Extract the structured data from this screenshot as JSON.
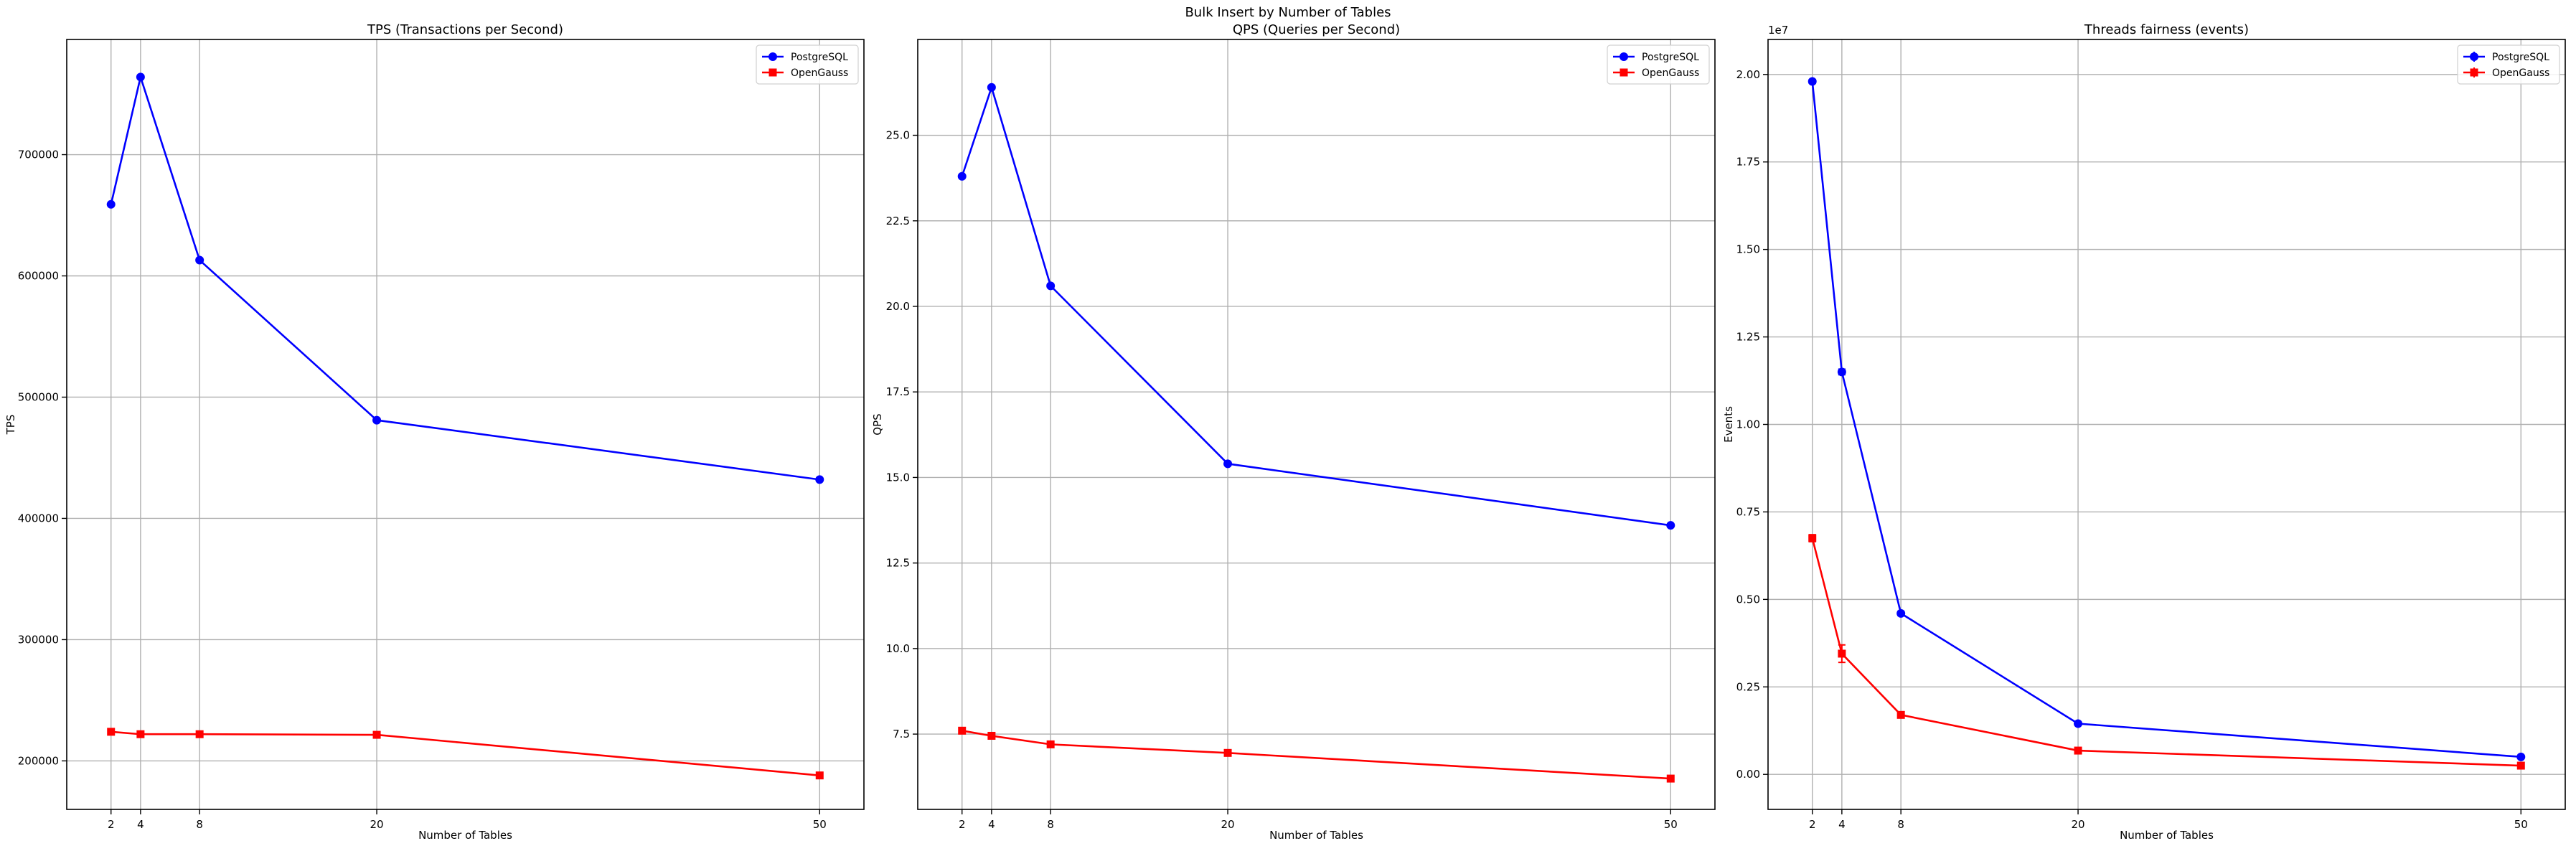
{
  "figure_title": "Bulk Insert by Number of Tables",
  "colors": {
    "PostgreSQL": "#0000ff",
    "OpenGauss": "#ff0000",
    "grid": "#b0b0b0"
  },
  "chart_data": [
    {
      "type": "line",
      "title": "TPS (Transactions per Second)",
      "xlabel": "Number of Tables",
      "ylabel": "TPS",
      "x": [
        2,
        4,
        8,
        20,
        50
      ],
      "xlim": [
        -1,
        53
      ],
      "ylim": [
        160000,
        795000
      ],
      "xticks": [
        2,
        4,
        8,
        20,
        50
      ],
      "yticks": [
        200000,
        300000,
        400000,
        500000,
        600000,
        700000
      ],
      "ytick_labels": [
        "200000",
        "300000",
        "400000",
        "500000",
        "600000",
        "700000"
      ],
      "grid": true,
      "legend": "top-right",
      "series": [
        {
          "name": "PostgreSQL",
          "marker": "circle",
          "values": [
            659000,
            764000,
            613000,
            481000,
            432000
          ]
        },
        {
          "name": "OpenGauss",
          "marker": "square",
          "values": [
            224000,
            222000,
            222000,
            221500,
            188000
          ]
        }
      ]
    },
    {
      "type": "line",
      "title": "QPS (Queries per Second)",
      "xlabel": "Number of Tables",
      "ylabel": "QPS",
      "x": [
        2,
        4,
        8,
        20,
        50
      ],
      "xlim": [
        -1,
        53
      ],
      "ylim": [
        5.3,
        27.8
      ],
      "xticks": [
        2,
        4,
        8,
        20,
        50
      ],
      "yticks": [
        7.5,
        10.0,
        12.5,
        15.0,
        17.5,
        20.0,
        22.5,
        25.0
      ],
      "ytick_labels": [
        "7.5",
        "10.0",
        "12.5",
        "15.0",
        "17.5",
        "20.0",
        "22.5",
        "25.0"
      ],
      "grid": true,
      "legend": "top-right",
      "series": [
        {
          "name": "PostgreSQL",
          "marker": "circle",
          "values": [
            23.8,
            26.4,
            20.6,
            15.4,
            13.6
          ]
        },
        {
          "name": "OpenGauss",
          "marker": "square",
          "values": [
            7.6,
            7.45,
            7.2,
            6.95,
            6.2
          ]
        }
      ]
    },
    {
      "type": "line",
      "title": "Threads fairness (events)",
      "xlabel": "Number of Tables",
      "ylabel": "Events",
      "y_offset_label": "1e7",
      "x": [
        2,
        4,
        8,
        20,
        50
      ],
      "xlim": [
        -1,
        53
      ],
      "ylim": [
        -0.1,
        2.1
      ],
      "xticks": [
        2,
        4,
        8,
        20,
        50
      ],
      "yticks": [
        0.0,
        0.25,
        0.5,
        0.75,
        1.0,
        1.25,
        1.5,
        1.75,
        2.0
      ],
      "ytick_labels": [
        "0.00",
        "0.25",
        "0.50",
        "0.75",
        "1.00",
        "1.25",
        "1.50",
        "1.75",
        "2.00"
      ],
      "grid": true,
      "legend": "top-right",
      "error_bars": true,
      "series": [
        {
          "name": "PostgreSQL",
          "marker": "circle",
          "values": [
            1.98,
            1.15,
            0.46,
            0.145,
            0.05
          ],
          "errors": [
            0.005,
            0.008,
            0.006,
            0.003,
            0.002
          ]
        },
        {
          "name": "OpenGauss",
          "marker": "square",
          "values": [
            0.675,
            0.345,
            0.17,
            0.068,
            0.025
          ],
          "errors": [
            0.01,
            0.025,
            0.008,
            0.004,
            0.002
          ]
        }
      ]
    }
  ]
}
